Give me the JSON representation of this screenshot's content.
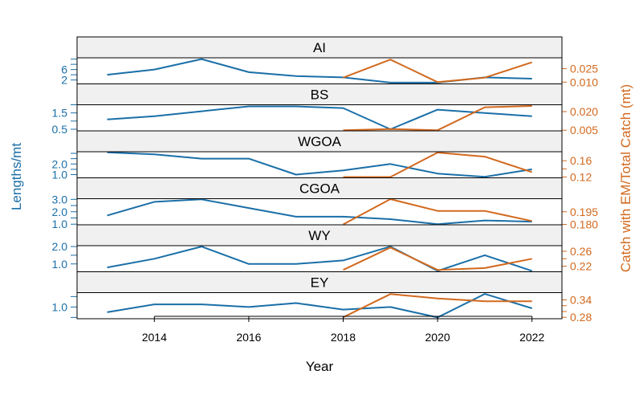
{
  "chart_data": {
    "type": "line",
    "xlabel": "Year",
    "ylabel_left": "Lengths/mt",
    "ylabel_right": "Catch with EM/Total Catch (mt)",
    "xlim": [
      2012.6,
      2022.6
    ],
    "xticks": [
      2014,
      2016,
      2018,
      2020,
      2022
    ],
    "colors": {
      "left": "#1a6fa8",
      "right": "#d2691e",
      "frame": "#000000",
      "strip": "#f0f0f0"
    },
    "panels": [
      {
        "name": "AI",
        "left": {
          "x": [
            2013,
            2014,
            2015,
            2016,
            2017,
            2018,
            2019,
            2020,
            2021,
            2022
          ],
          "y": [
            4.0,
            6.0,
            10.0,
            5.0,
            3.5,
            3.0,
            1.0,
            1.0,
            3.0,
            2.5
          ],
          "ylim": [
            0.5,
            10.5
          ],
          "ticks": [
            2,
            4,
            6,
            8,
            10
          ],
          "tick_labels": [
            "2",
            "",
            "6",
            "",
            ""
          ]
        },
        "right": {
          "x": [
            2018,
            2019,
            2020,
            2021,
            2022
          ],
          "y": [
            0.015,
            0.035,
            0.01,
            0.015,
            0.032
          ],
          "ylim": [
            0.008,
            0.037
          ],
          "ticks": [
            0.01,
            0.025
          ],
          "tick_labels": [
            "0.010",
            "0.025"
          ]
        }
      },
      {
        "name": "BS",
        "left": {
          "x": [
            2013,
            2014,
            2015,
            2016,
            2017,
            2018,
            2019,
            2020,
            2021,
            2022
          ],
          "y": [
            1.1,
            1.3,
            1.6,
            1.9,
            1.9,
            1.8,
            0.5,
            1.7,
            1.5,
            1.3
          ],
          "ylim": [
            0.4,
            2.0
          ],
          "ticks": [
            0.5,
            1.0,
            1.5,
            2.0
          ],
          "tick_labels": [
            "0.5",
            "",
            "1.5",
            ""
          ]
        },
        "right": {
          "x": [
            2018,
            2019,
            2020,
            2021,
            2022
          ],
          "y": [
            0.005,
            0.006,
            0.005,
            0.0235,
            0.0245
          ],
          "ylim": [
            0.0045,
            0.0255
          ],
          "ticks": [
            0.005,
            0.02
          ],
          "tick_labels": [
            "0.005",
            "0.020"
          ]
        }
      },
      {
        "name": "WGOA",
        "left": {
          "x": [
            2013,
            2014,
            2015,
            2016,
            2017,
            2018,
            2019,
            2020,
            2021,
            2022
          ],
          "y": [
            3.1,
            2.9,
            2.5,
            2.5,
            1.0,
            1.4,
            2.0,
            1.1,
            0.8,
            1.5
          ],
          "ylim": [
            0.7,
            3.15
          ],
          "ticks": [
            1.0,
            1.5,
            2.0,
            2.5,
            3.0
          ],
          "tick_labels": [
            "1.0",
            "",
            "2.0",
            "",
            ""
          ]
        },
        "right": {
          "x": [
            2018,
            2019,
            2020,
            2021,
            2022
          ],
          "y": [
            0.12,
            0.12,
            0.18,
            0.17,
            0.132
          ],
          "ylim": [
            0.118,
            0.182
          ],
          "ticks": [
            0.12,
            0.14,
            0.16
          ],
          "tick_labels": [
            "0.12",
            "",
            "0.16"
          ]
        }
      },
      {
        "name": "CGOA",
        "left": {
          "x": [
            2013,
            2014,
            2015,
            2016,
            2017,
            2018,
            2019,
            2020,
            2021,
            2022
          ],
          "y": [
            1.7,
            2.8,
            3.0,
            2.3,
            1.6,
            1.6,
            1.4,
            1.0,
            1.3,
            1.2
          ],
          "ylim": [
            0.95,
            3.05
          ],
          "ticks": [
            1.0,
            1.5,
            2.0,
            2.5,
            3.0
          ],
          "tick_labels": [
            "1.0",
            "",
            "2.0",
            "",
            "3.0"
          ]
        },
        "right": {
          "x": [
            2018,
            2019,
            2020,
            2021,
            2022
          ],
          "y": [
            0.18,
            0.21,
            0.196,
            0.196,
            0.184
          ],
          "ylim": [
            0.1795,
            0.2105
          ],
          "ticks": [
            0.18,
            0.195
          ],
          "tick_labels": [
            "0.180",
            "0.195"
          ]
        }
      },
      {
        "name": "WY",
        "left": {
          "x": [
            2013,
            2014,
            2015,
            2016,
            2017,
            2018,
            2019,
            2020,
            2021,
            2022
          ],
          "y": [
            0.8,
            1.3,
            2.0,
            1.0,
            1.0,
            1.2,
            2.0,
            0.6,
            1.5,
            0.6
          ],
          "ylim": [
            0.55,
            2.05
          ],
          "ticks": [
            1.0,
            1.5,
            2.0
          ],
          "tick_labels": [
            "1.0",
            "",
            "2.0"
          ]
        },
        "right": {
          "x": [
            2018,
            2019,
            2020,
            2021,
            2022
          ],
          "y": [
            0.21,
            0.27,
            0.21,
            0.215,
            0.24
          ],
          "ylim": [
            0.205,
            0.275
          ],
          "ticks": [
            0.22,
            0.24,
            0.26
          ],
          "tick_labels": [
            "0.22",
            "",
            "0.26"
          ]
        }
      },
      {
        "name": "EY",
        "left": {
          "x": [
            2013,
            2014,
            2015,
            2016,
            2017,
            2018,
            2019,
            2020,
            2021,
            2022
          ],
          "y": [
            0.8,
            1.1,
            1.1,
            1.0,
            1.15,
            0.9,
            1.0,
            0.6,
            1.5,
            0.95
          ],
          "ylim": [
            0.55,
            1.55
          ],
          "ticks": [
            0.6,
            1.0,
            1.4
          ],
          "tick_labels": [
            "",
            "1.0",
            ""
          ]
        },
        "right": {
          "x": [
            2018,
            2019,
            2020,
            2021,
            2022
          ],
          "y": [
            0.28,
            0.36,
            0.345,
            0.335,
            0.335
          ],
          "ylim": [
            0.275,
            0.365
          ],
          "ticks": [
            0.28,
            0.3,
            0.32,
            0.34
          ],
          "tick_labels": [
            "0.28",
            "",
            "",
            "0.34"
          ]
        }
      }
    ]
  }
}
